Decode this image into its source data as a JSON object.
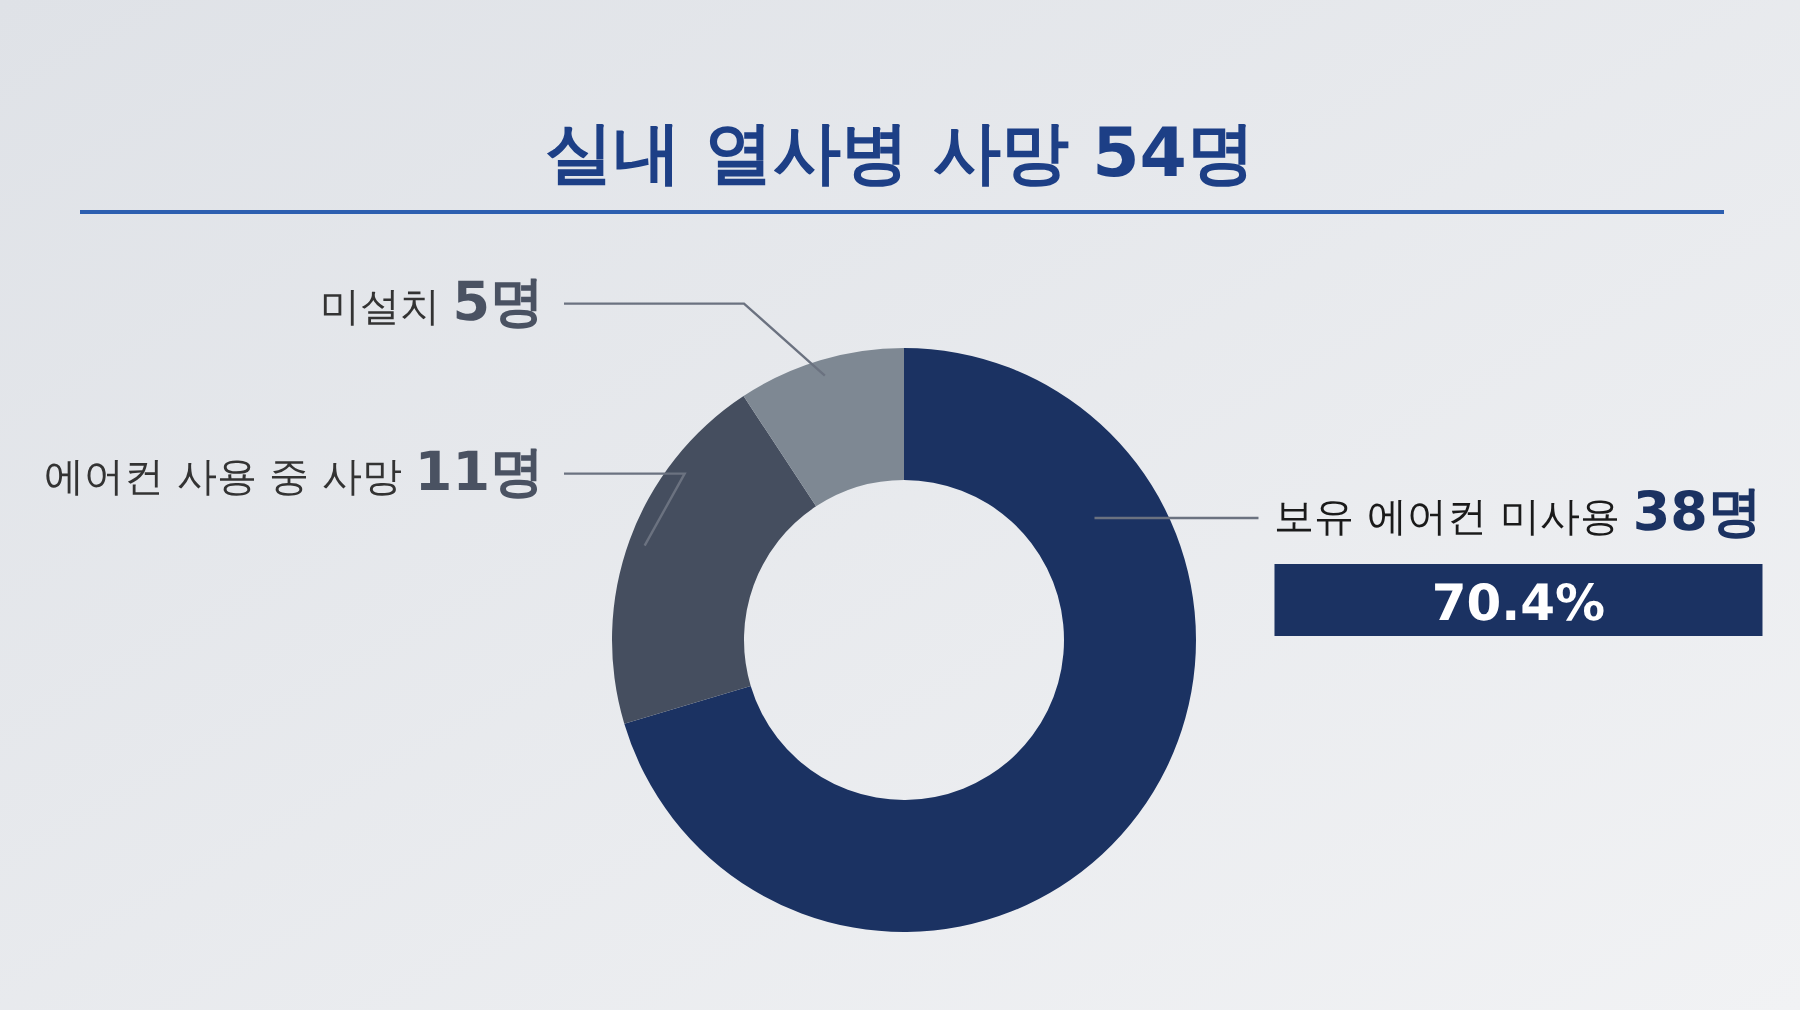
{
  "chart_data": {
    "type": "donut",
    "title": "실내 열사병 사망 54명",
    "categories": [
      "보유 에어컨 미사용",
      "에어컨 사용 중 사망",
      "미설치"
    ],
    "values": [
      38,
      11,
      5
    ],
    "value_labels": [
      "38명",
      "11명",
      "5명"
    ],
    "colors": [
      "#1b3262",
      "#454e5f",
      "#7e8893"
    ],
    "annotations": [
      "70.4%"
    ]
  }
}
